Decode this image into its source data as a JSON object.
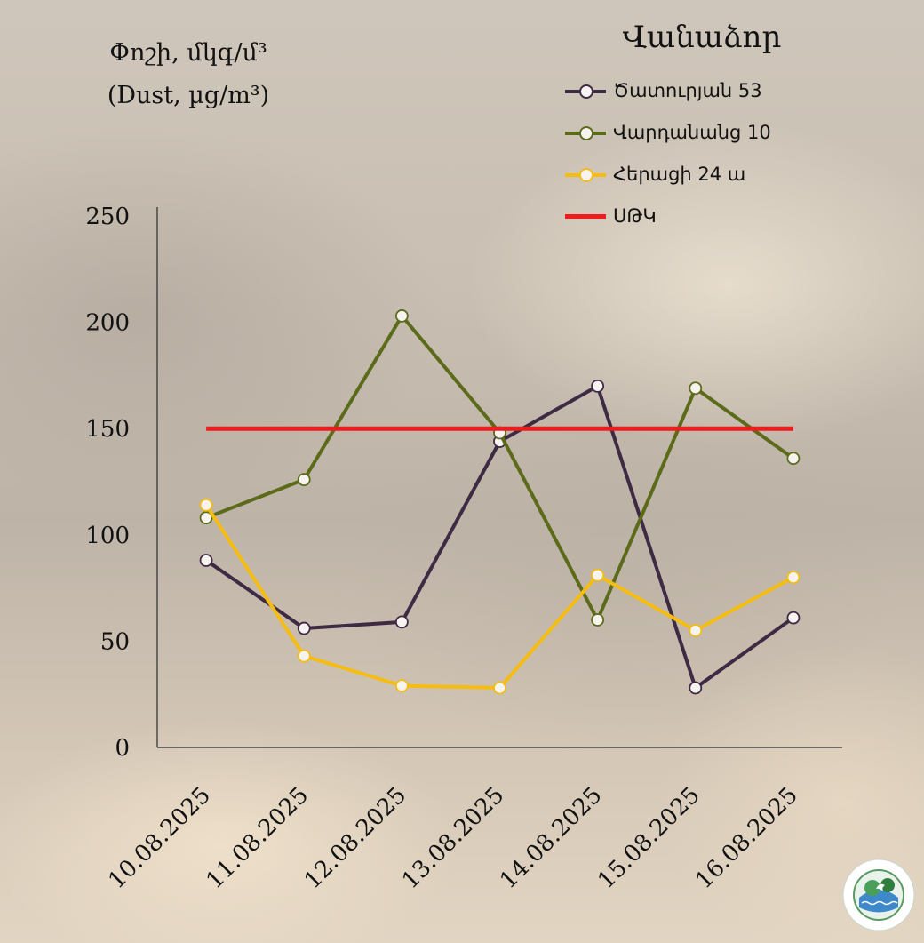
{
  "y_title": [
    "Փոշի, մկգ/մ³",
    "(Dust, µg/m³)"
  ],
  "legend_title": "Վանաձոր",
  "chart_data": {
    "type": "line",
    "categories": [
      "10.08.2025",
      "11.08.2025",
      "12.08.2025",
      "13.08.2025",
      "14.08.2025",
      "15.08.2025",
      "16.08.2025"
    ],
    "ylim": [
      0,
      250
    ],
    "yticks": [
      0,
      50,
      100,
      150,
      200,
      250
    ],
    "grid": false,
    "legend_position": "top-right",
    "series": [
      {
        "name": "Ծատուրյան 53",
        "color": "#3f2a43",
        "marker": true,
        "values": [
          88,
          56,
          59,
          144,
          170,
          28,
          61
        ]
      },
      {
        "name": "Վարդանանց 10",
        "color": "#5c6b1a",
        "marker": true,
        "values": [
          108,
          126,
          203,
          148,
          60,
          169,
          136
        ]
      },
      {
        "name": "Հերացի 24 ա",
        "color": "#f5bd12",
        "marker": true,
        "values": [
          114,
          43,
          29,
          28,
          81,
          55,
          80
        ]
      },
      {
        "name": "ՍԹԿ",
        "color": "#ee1c1c",
        "marker": false,
        "values": [
          150,
          150,
          150,
          150,
          150,
          150,
          150
        ]
      }
    ]
  }
}
